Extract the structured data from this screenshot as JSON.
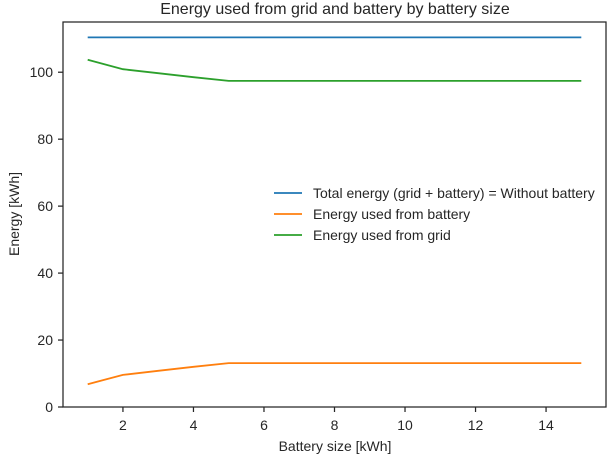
{
  "chart_data": {
    "type": "line",
    "title": "Energy used from grid and battery by battery size",
    "xlabel": "Battery size [kWh]",
    "ylabel": "Energy [kWh]",
    "xlim": [
      0.3,
      15.7
    ],
    "ylim": [
      0,
      115
    ],
    "xticks": [
      2,
      4,
      6,
      8,
      10,
      12,
      14
    ],
    "yticks": [
      0,
      20,
      40,
      60,
      80,
      100
    ],
    "grid": false,
    "legend_position": "center-right",
    "series": [
      {
        "name": "Total energy (grid + battery) = Without battery",
        "color": "#1f77b4",
        "x": [
          1,
          2,
          3,
          4,
          5,
          6,
          7,
          8,
          9,
          10,
          11,
          12,
          13,
          14,
          15
        ],
        "y": [
          110.4,
          110.4,
          110.4,
          110.4,
          110.4,
          110.4,
          110.4,
          110.4,
          110.4,
          110.4,
          110.4,
          110.4,
          110.4,
          110.4,
          110.4
        ]
      },
      {
        "name": "Energy used from battery",
        "color": "#ff7f0e",
        "x": [
          1,
          2,
          3,
          4,
          5,
          6,
          7,
          8,
          9,
          10,
          11,
          12,
          13,
          14,
          15
        ],
        "y": [
          6.8,
          9.6,
          10.8,
          12.0,
          13.1,
          13.1,
          13.1,
          13.1,
          13.1,
          13.1,
          13.1,
          13.1,
          13.1,
          13.1,
          13.1
        ]
      },
      {
        "name": "Energy used from grid",
        "color": "#2ca02c",
        "x": [
          1,
          2,
          3,
          4,
          5,
          6,
          7,
          8,
          9,
          10,
          11,
          12,
          13,
          14,
          15
        ],
        "y": [
          103.7,
          100.9,
          99.7,
          98.5,
          97.4,
          97.4,
          97.4,
          97.4,
          97.4,
          97.4,
          97.4,
          97.4,
          97.4,
          97.4,
          97.4
        ]
      }
    ]
  }
}
